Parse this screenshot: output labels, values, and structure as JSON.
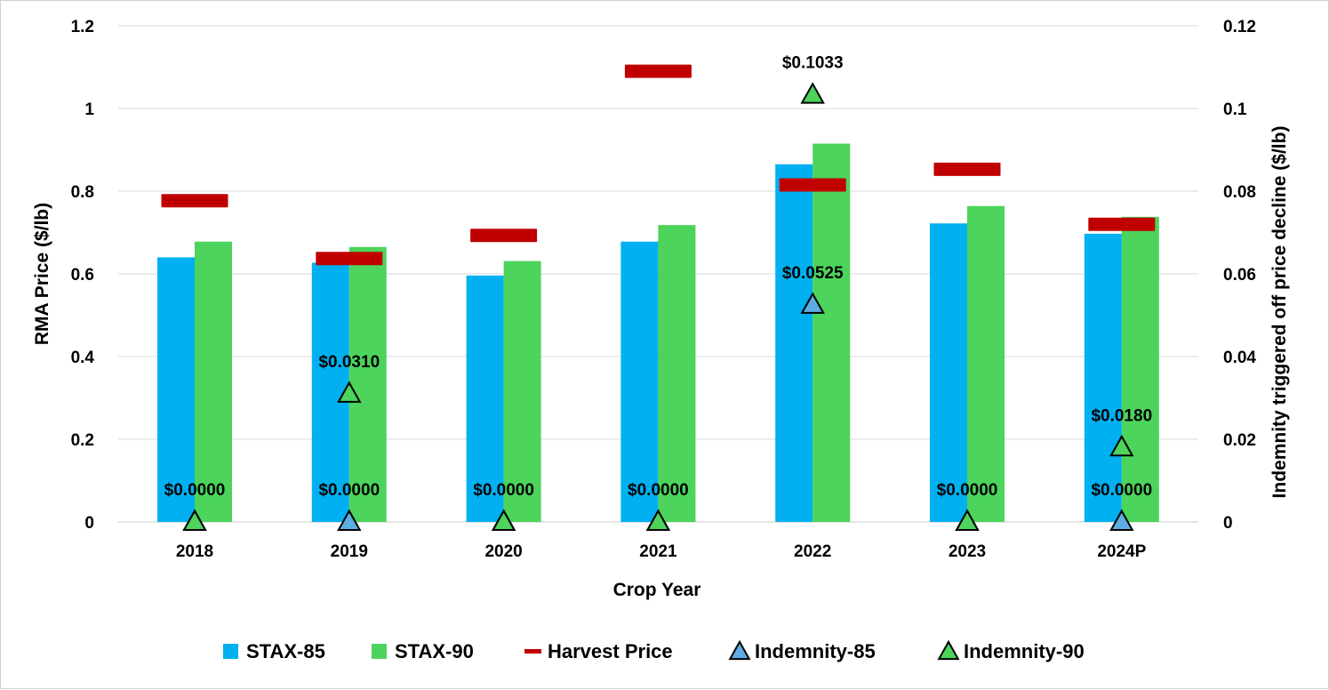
{
  "chart_data": {
    "type": "bar",
    "categories": [
      "2018",
      "2019",
      "2020",
      "2021",
      "2022",
      "2023",
      "2024P"
    ],
    "xlabel": "Crop Year",
    "ylabel": "RMA Price ($/lb)",
    "y2label": "Indemnity triggered off price decline ($/lb)",
    "ylim": [
      0,
      1.2
    ],
    "y2lim": [
      0,
      0.12
    ],
    "yticks": [
      "0",
      "0.2",
      "0.4",
      "0.6",
      "0.8",
      "1",
      "1.2"
    ],
    "y2ticks": [
      "0",
      "0.02",
      "0.04",
      "0.06",
      "0.08",
      "0.1",
      "0.12"
    ],
    "grid": "horizontal",
    "legend_position": "bottom",
    "series": [
      {
        "name": "STAX-85",
        "kind": "bar",
        "axis": "left",
        "color": "#00B0F0",
        "values": [
          0.64,
          0.627,
          0.596,
          0.678,
          0.865,
          0.722,
          0.697
        ]
      },
      {
        "name": "STAX-90",
        "kind": "bar",
        "axis": "left",
        "color": "#4CD45C",
        "values": [
          0.678,
          0.665,
          0.631,
          0.718,
          0.915,
          0.764,
          0.738
        ]
      },
      {
        "name": "Harvest Price",
        "kind": "dash",
        "axis": "left",
        "color": "#C00000",
        "values": [
          0.777,
          0.637,
          0.693,
          1.09,
          0.815,
          0.853,
          0.72
        ]
      },
      {
        "name": "Indemnity-85",
        "kind": "triangle",
        "axis": "right",
        "color": "#5DADE2",
        "values": [
          0,
          0,
          0,
          0,
          0.0525,
          0,
          0
        ],
        "labels": [
          "$0.0000",
          "$0.0000",
          "$0.0000",
          "$0.0000",
          "$0.0525",
          "$0.0000",
          "$0.0000"
        ]
      },
      {
        "name": "Indemnity-90",
        "kind": "triangle",
        "axis": "right",
        "color": "#4CD45C",
        "values": [
          0,
          0.031,
          0,
          0,
          0.1033,
          0,
          0.018
        ],
        "labels": [
          "",
          "$0.0310",
          "",
          "",
          "$0.1033",
          "",
          "$0.0180"
        ]
      }
    ]
  }
}
